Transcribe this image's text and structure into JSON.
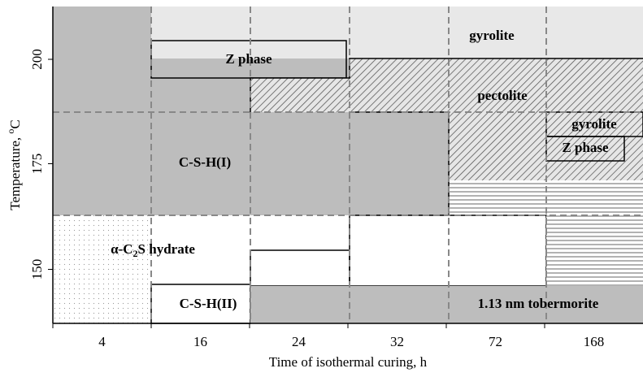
{
  "chart_data": {
    "type": "phase-map",
    "x_label": "Time of isothermal curing, h",
    "y_label": [
      "Temperature, ",
      "o",
      "C"
    ],
    "categories": [
      "4",
      "16",
      "24",
      "32",
      "72",
      "168"
    ],
    "yticks": [
      150,
      175,
      200
    ],
    "regions": {
      "gyrolite_top": "gyrolite",
      "z_phase_top": "Z phase",
      "pectolite": "pectolite",
      "gyrolite_right": "gyrolite",
      "z_phase_right": "Z phase",
      "csh1": "C-S-H(I)",
      "c2s_hydrate": [
        "α-C",
        "2",
        "S hydrate"
      ],
      "csh2": "C-S-H(II)",
      "tobermorite": "1.13 nm tobermorite"
    }
  }
}
